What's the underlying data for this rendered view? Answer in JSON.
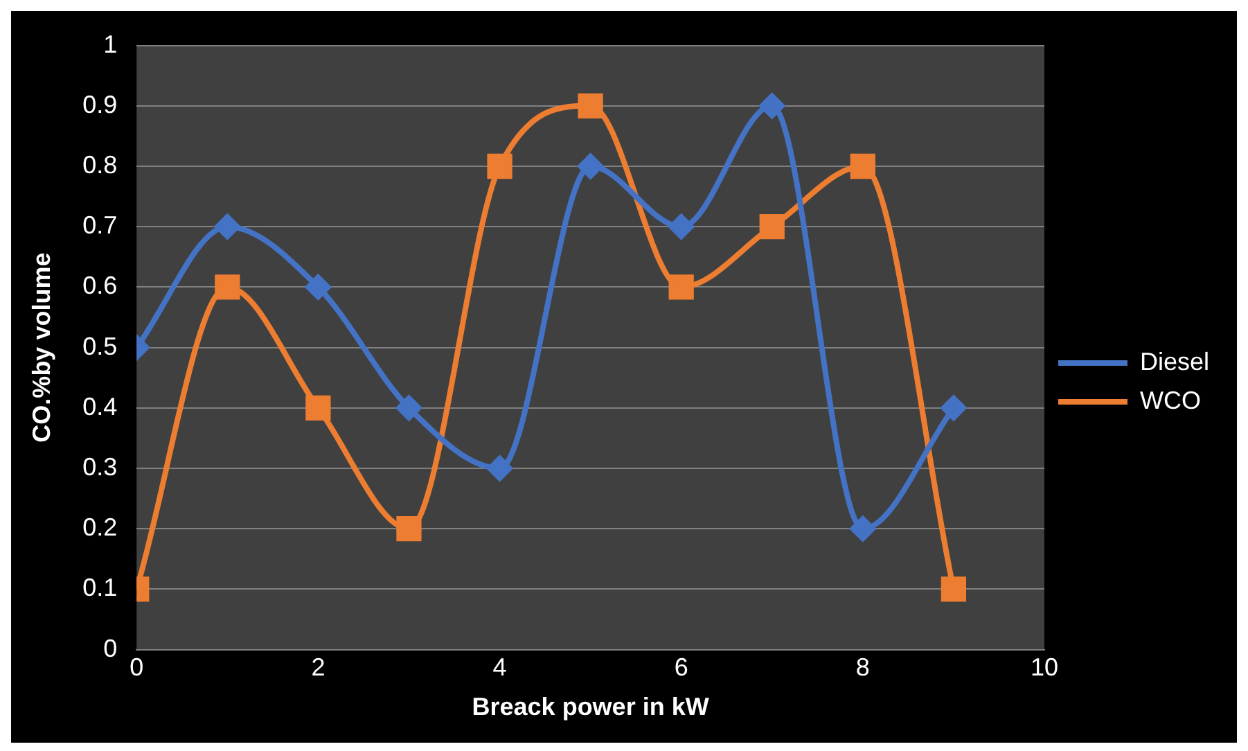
{
  "chart_data": {
    "type": "line",
    "xlabel": "Breack power in kW",
    "ylabel": "CO.%by volume",
    "x": [
      0,
      1,
      2,
      3,
      4,
      5,
      6,
      7,
      8,
      9
    ],
    "series": [
      {
        "name": "Diesel",
        "color": "#4472c4",
        "values": [
          0.5,
          0.7,
          0.6,
          0.4,
          0.3,
          0.8,
          0.7,
          0.9,
          0.2,
          0.4
        ],
        "marker": "diamond"
      },
      {
        "name": "WCO",
        "color": "#ed7d31",
        "values": [
          0.1,
          0.6,
          0.4,
          0.2,
          0.8,
          0.9,
          0.6,
          0.7,
          0.8,
          0.1
        ],
        "marker": "square"
      }
    ],
    "xlim": [
      0,
      10
    ],
    "xticks": [
      0,
      2,
      4,
      6,
      8,
      10
    ],
    "ylim": [
      0,
      1
    ],
    "yticks": [
      0,
      0.1,
      0.2,
      0.3,
      0.4,
      0.5,
      0.6,
      0.7,
      0.8,
      0.9,
      1
    ],
    "grid": "y",
    "legend": "right"
  }
}
